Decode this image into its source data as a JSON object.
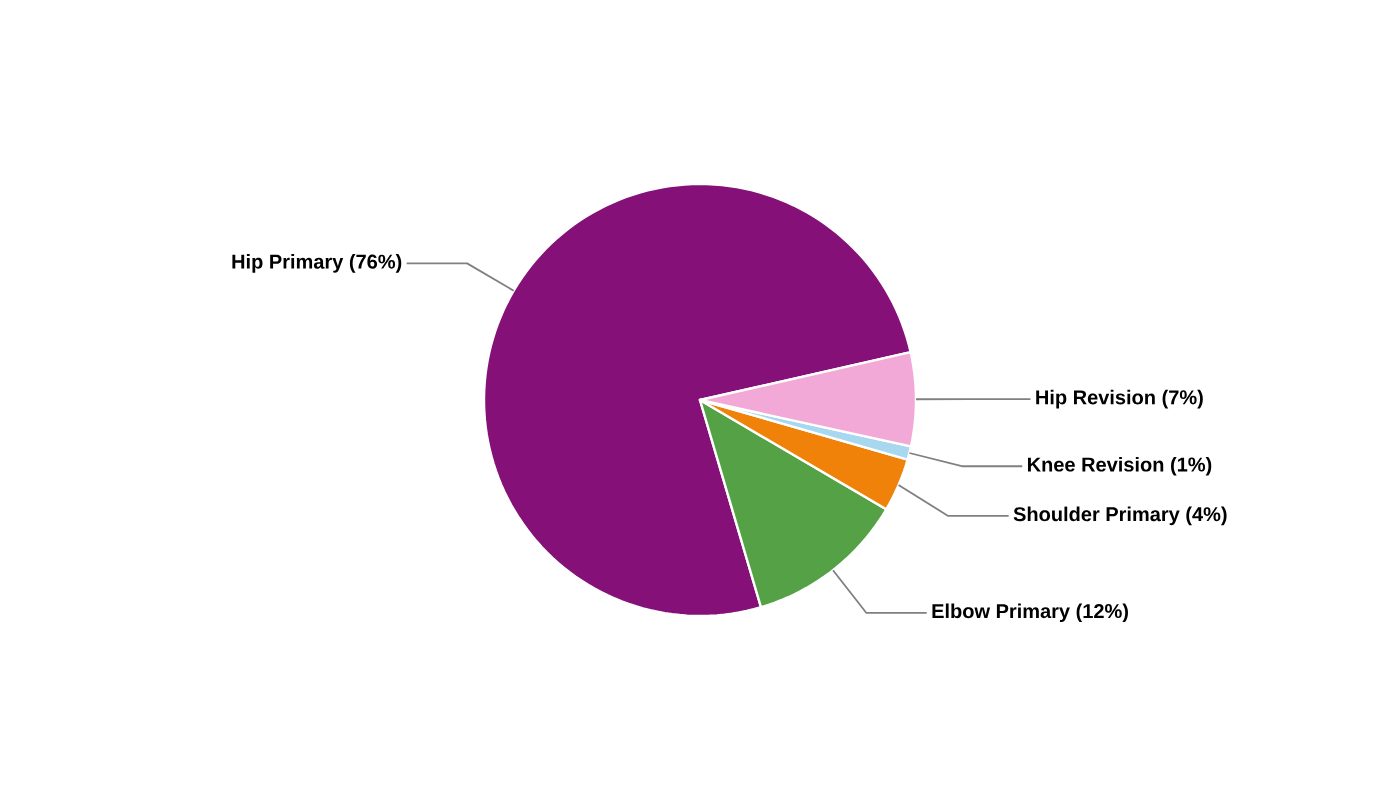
{
  "chart_data": {
    "type": "pie",
    "categories": [
      "Hip Primary",
      "Elbow Primary",
      "Shoulder Primary",
      "Knee Revision",
      "Hip Revision"
    ],
    "values": [
      76,
      12,
      4,
      1,
      7
    ],
    "value_labels": [
      "(76%)",
      "(12%)",
      "(4%)",
      "(1%)",
      "(7%)"
    ],
    "colors": [
      "#841078",
      "#55a145",
      "#f0820a",
      "#a8d8f0",
      "#f2a9d8"
    ]
  }
}
